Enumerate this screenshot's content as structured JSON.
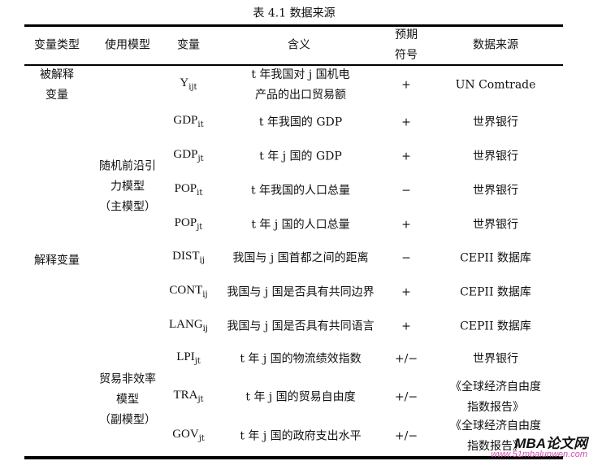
{
  "caption": "表 4.1   数据来源",
  "headers": {
    "type": "变量类型",
    "model": "使用模型",
    "var": "变量",
    "meaning": "含义",
    "sign_1": "预期",
    "sign_2": "符号",
    "source": "数据来源"
  },
  "groups": {
    "explained_1": "被解释",
    "explained_2": "变量",
    "explanatory": "解释变量",
    "main_model_1": "随机前沿引",
    "main_model_2": "力模型",
    "main_model_3": "（主模型）",
    "sub_model_1": "贸易非效率",
    "sub_model_2": "模型",
    "sub_model_3": "（副模型）"
  },
  "rows": [
    {
      "var": "Y",
      "sub": "ijt",
      "meaning_1": "t 年我国对 j 国机电",
      "meaning_2": "产品的出口贸易额",
      "sign": "+",
      "source_1": "UN Comtrade"
    },
    {
      "var": "GDP",
      "sub": "it",
      "meaning_1": "t 年我国的 GDP",
      "sign": "+",
      "source_1": "世界银行"
    },
    {
      "var": "GDP",
      "sub": "jt",
      "meaning_1": "t 年 j 国的 GDP",
      "sign": "+",
      "source_1": "世界银行"
    },
    {
      "var": "POP",
      "sub": "it",
      "meaning_1": "t 年我国的人口总量",
      "sign": "−",
      "source_1": "世界银行"
    },
    {
      "var": "POP",
      "sub": "jt",
      "meaning_1": "t 年 j 国的人口总量",
      "sign": "+",
      "source_1": "世界银行"
    },
    {
      "var": "DIST",
      "sub": "ij",
      "meaning_1": "我国与 j 国首都之间的距离",
      "sign": "−",
      "source_1": "CEPII 数据库"
    },
    {
      "var": "CONT",
      "sub": "ij",
      "meaning_1": "我国与 j 国是否具有共同边界",
      "sign": "+",
      "source_1": "CEPII 数据库"
    },
    {
      "var": "LANG",
      "sub": "ij",
      "meaning_1": "我国与 j 国是否具有共同语言",
      "sign": "+",
      "source_1": "CEPII 数据库"
    },
    {
      "var": "LPI",
      "sub": "jt",
      "meaning_1": "t 年 j 国的物流绩效指数",
      "sign": "+/−",
      "source_1": "世界银行"
    },
    {
      "var": "TRA",
      "sub": "jt",
      "meaning_1": "t 年 j 国的贸易自由度",
      "sign": "+/−",
      "source_1": "《全球经济自由度",
      "source_2": "指数报告》"
    },
    {
      "var": "GOV",
      "sub": "jt",
      "meaning_1": "t 年 j 国的政府支出水平",
      "sign": "+/−",
      "source_1": "《全球经济自由度",
      "source_2": "指数报告》"
    }
  ],
  "watermark": {
    "line1": "MBA论文网",
    "line2": "www.51mbalunwen.com"
  }
}
